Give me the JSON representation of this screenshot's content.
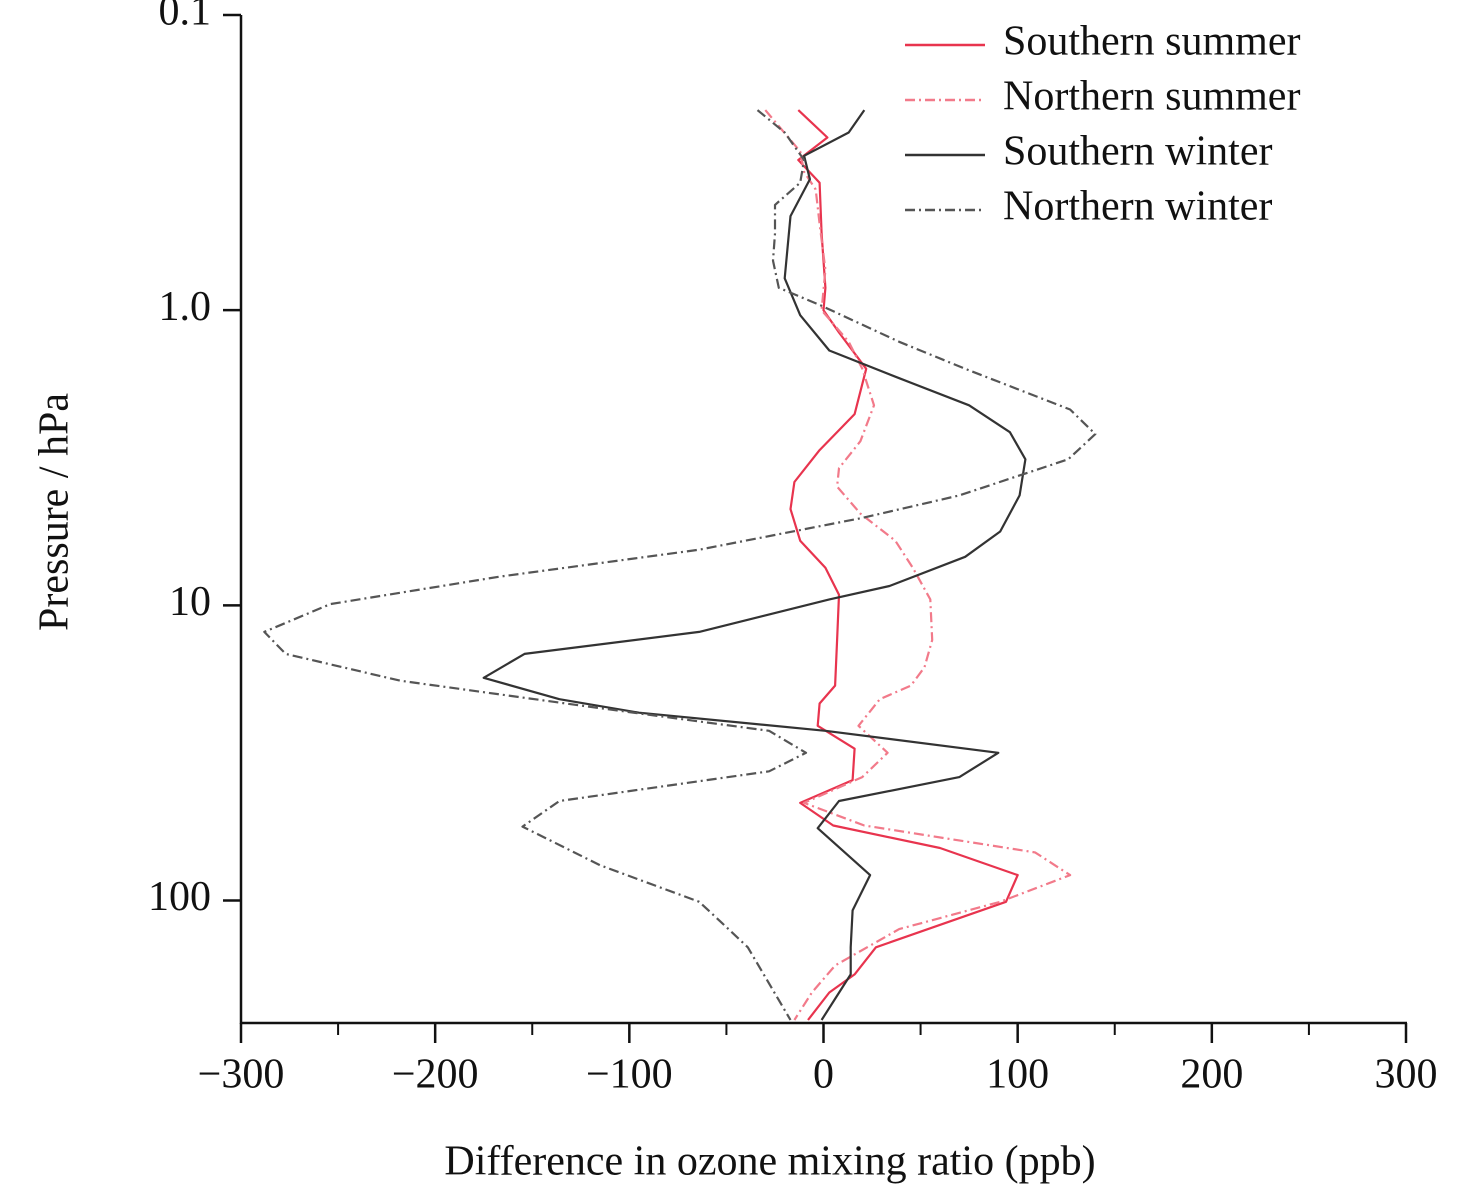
{
  "chart_data": {
    "type": "line",
    "xlabel": "Difference in ozone mixing ratio (ppb)",
    "ylabel": "Pressure / hPa",
    "xlim": [
      -300,
      300
    ],
    "xticks": [
      {
        "value": -300,
        "label": "−300"
      },
      {
        "value": -200,
        "label": "−200"
      },
      {
        "value": -100,
        "label": "−100"
      },
      0,
      100,
      200,
      300
    ],
    "xminorticks": [
      -250,
      -150,
      -50,
      50,
      150,
      250
    ],
    "ylim": [
      0.1,
      260
    ],
    "yscale": "log",
    "yinverted": true,
    "yticks": [
      0.1,
      {
        "value": 1,
        "label": "1.0"
      },
      10,
      100
    ],
    "legend": "upper right",
    "series": [
      {
        "name": "Southern summer",
        "color": "#e8344e",
        "linestyle": "solid",
        "y": [
          0.21,
          0.26,
          0.31,
          0.37,
          0.55,
          0.84,
          1,
          1.19,
          1.58,
          2.25,
          2.98,
          3.82,
          4.72,
          6.04,
          7.46,
          9.2,
          13.1,
          18.7,
          21.5,
          25.6,
          30.6,
          39.1,
          46.7,
          55.7,
          66.4,
          82,
          101,
          144,
          178,
          205,
          254
        ],
        "values": [
          -13,
          2,
          -13,
          -2,
          -1,
          1,
          0,
          8,
          22,
          16,
          -2,
          -15,
          -17,
          -12,
          1,
          8,
          7,
          6,
          -2,
          -3,
          16,
          15,
          -12,
          5,
          60,
          100,
          94,
          27,
          16,
          3,
          -8
        ]
      },
      {
        "name": "Northern summer",
        "color": "#f27a8a",
        "linestyle": "dashdot",
        "y": [
          0.21,
          0.29,
          0.34,
          0.39,
          0.51,
          0.73,
          1,
          1.28,
          1.58,
          2.1,
          2.78,
          3.43,
          3.96,
          4.89,
          6.04,
          7.46,
          9.55,
          13.1,
          16.2,
          18.7,
          20.8,
          25.6,
          31.6,
          38.2,
          46.7,
          55.7,
          68.7,
          82,
          101,
          125,
          166,
          205,
          254
        ],
        "values": [
          -30,
          -12,
          -10,
          -4,
          -2,
          1,
          -1,
          13,
          20,
          26,
          19,
          8,
          7,
          19,
          37,
          46,
          55,
          56,
          52,
          45,
          29,
          18,
          33,
          20,
          -10,
          21,
          109,
          127,
          91,
          39,
          6,
          -6,
          -15
        ]
      },
      {
        "name": "Southern winter",
        "color": "#333333",
        "linestyle": "solid",
        "y": [
          0.21,
          0.25,
          0.3,
          0.36,
          0.48,
          0.78,
          1.04,
          1.37,
          1.7,
          2.1,
          2.59,
          3.2,
          4.24,
          5.62,
          6.85,
          8.6,
          9.55,
          12.3,
          14.6,
          17.6,
          20.8,
          23.1,
          26.6,
          31.6,
          38.2,
          46,
          56.9,
          82,
          108,
          144,
          178,
          254
        ],
        "values": [
          21,
          13,
          -10,
          -7,
          -17,
          -20,
          -12,
          3,
          39,
          75,
          96,
          104,
          101,
          91,
          73,
          34,
          3,
          -64,
          -154,
          -175,
          -136,
          -95,
          1,
          90,
          70,
          8,
          -3,
          24,
          15,
          14,
          14,
          -1
        ]
      },
      {
        "name": "Northern winter",
        "color": "#555555",
        "linestyle": "dashdot",
        "y": [
          0.21,
          0.25,
          0.31,
          0.37,
          0.44,
          0.55,
          0.68,
          0.84,
          0.96,
          1.28,
          1.58,
          2.17,
          2.63,
          3.2,
          4.24,
          5.07,
          6.48,
          8.0,
          9.9,
          12.3,
          14.6,
          18.0,
          22.3,
          26.6,
          31.6,
          36.5,
          46,
          56.2,
          76,
          101,
          118,
          144,
          254
        ],
        "values": [
          -34,
          -20,
          -10,
          -12,
          -25,
          -25,
          -26,
          -23,
          -2,
          39,
          73,
          127,
          140,
          126,
          70,
          19,
          -64,
          -167,
          -254,
          -288,
          -277,
          -218,
          -115,
          -28,
          -9,
          -28,
          -136,
          -155,
          -115,
          -64,
          -53,
          -39,
          -17
        ]
      }
    ]
  }
}
